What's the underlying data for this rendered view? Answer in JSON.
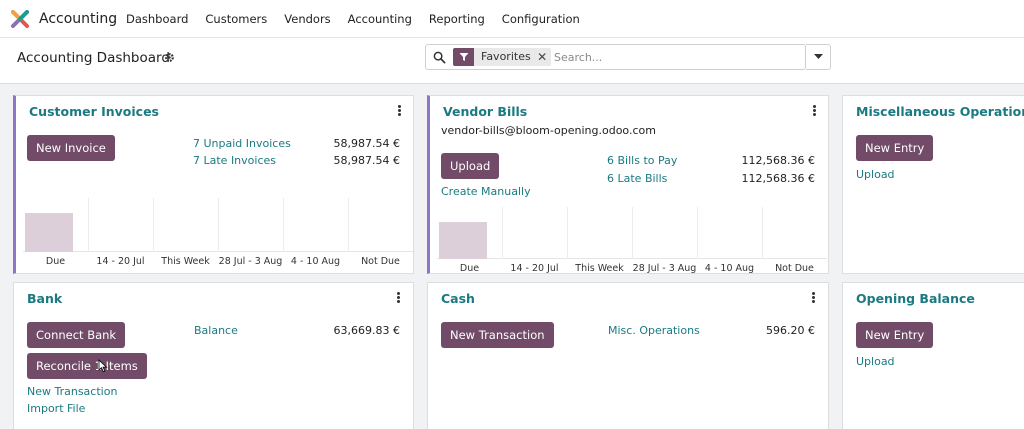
{
  "topbar": {
    "app_name": "Accounting",
    "menu": [
      "Dashboard",
      "Customers",
      "Vendors",
      "Accounting",
      "Reporting",
      "Configuration"
    ]
  },
  "control": {
    "title": "Accounting Dashboard",
    "search": {
      "facet_label": "Favorites",
      "facet_close": "✕",
      "placeholder": "Search..."
    }
  },
  "colors": {
    "brand": "#714b67",
    "link": "#1a7a82",
    "accent_border": "#8f76c5",
    "bar": "#dccfd9"
  },
  "cards": {
    "customer_invoices": {
      "title": "Customer Invoices",
      "button": "New Invoice",
      "stats": [
        {
          "label": "7 Unpaid Invoices",
          "amount": "58,987.54 €"
        },
        {
          "label": "7 Late Invoices",
          "amount": "58,987.54 €"
        }
      ],
      "graph": {
        "type": "bar",
        "categories": [
          "Due",
          "14 - 20 Jul",
          "This Week",
          "28 Jul - 3 Aug",
          "4 - 10 Aug",
          "Not Due"
        ],
        "values": [
          1,
          0,
          0,
          0,
          0,
          0
        ]
      }
    },
    "vendor_bills": {
      "title": "Vendor Bills",
      "email": "vendor-bills@bloom-opening.odoo.com",
      "button": "Upload",
      "create_manually": "Create Manually",
      "stats": [
        {
          "label": "6 Bills to Pay",
          "amount": "112,568.36 €"
        },
        {
          "label": "6 Late Bills",
          "amount": "112,568.36 €"
        }
      ],
      "graph": {
        "type": "bar",
        "categories": [
          "Due",
          "14 - 20 Jul",
          "This Week",
          "28 Jul - 3 Aug",
          "4 - 10 Aug",
          "Not Due"
        ],
        "values": [
          1,
          0,
          0,
          0,
          0,
          0
        ]
      }
    },
    "misc_operations": {
      "title": "Miscellaneous Operations",
      "button": "New Entry",
      "upload": "Upload"
    },
    "bank": {
      "title": "Bank",
      "button_connect": "Connect Bank",
      "button_reconcile": "Reconcile 1 Items",
      "balance_label": "Balance",
      "balance_amount": "63,669.83 €",
      "new_transaction": "New Transaction",
      "import_file": "Import File"
    },
    "cash": {
      "title": "Cash",
      "button": "New Transaction",
      "misc_label": "Misc. Operations",
      "misc_amount": "596.20 €"
    },
    "opening_balance": {
      "title": "Opening Balance",
      "button": "New Entry",
      "upload": "Upload"
    }
  }
}
